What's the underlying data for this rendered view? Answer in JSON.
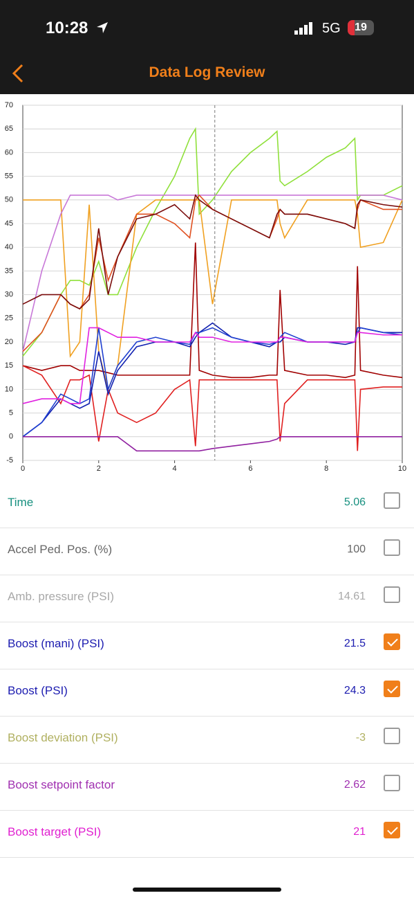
{
  "status_bar": {
    "time": "10:28",
    "network": "5G",
    "battery": "19"
  },
  "header": {
    "title": "Data Log Review"
  },
  "chart_data": {
    "type": "line",
    "x": [
      0,
      0.5,
      1,
      1.25,
      1.5,
      1.75,
      2,
      2.25,
      2.5,
      3,
      3.5,
      4,
      4.4,
      4.55,
      4.65,
      5,
      5.5,
      6,
      6.5,
      6.7,
      6.78,
      6.9,
      7.5,
      8,
      8.5,
      8.75,
      8.82,
      8.9,
      9.5,
      10
    ],
    "xlim": [
      0,
      10
    ],
    "xticks": [
      0,
      2,
      4,
      6,
      8,
      10
    ],
    "ylim": [
      -5,
      70
    ],
    "yticks": [
      -5,
      0,
      5,
      10,
      15,
      20,
      25,
      30,
      35,
      40,
      45,
      50,
      55,
      60,
      65,
      70
    ],
    "grid": true,
    "series": [
      {
        "color": "#8fe03a",
        "values": [
          17,
          22,
          30,
          33,
          33,
          32,
          37,
          30,
          30,
          40,
          48,
          55,
          63,
          65,
          47,
          50,
          56,
          60,
          63,
          64.5,
          54,
          53,
          56,
          59,
          61,
          63,
          50,
          51,
          51,
          53
        ]
      },
      {
        "color": "#f0a020",
        "values": [
          50,
          50,
          50,
          17,
          20,
          49,
          18,
          10,
          15,
          47,
          50,
          50,
          50,
          50,
          50,
          28,
          50,
          50,
          50,
          50,
          45,
          42,
          50,
          50,
          50,
          50,
          47,
          40,
          41,
          50
        ]
      },
      {
        "color": "#c878d8",
        "values": [
          18,
          35,
          47,
          51,
          51,
          51,
          51,
          51,
          50,
          51,
          51,
          51,
          51,
          51,
          51,
          51,
          51,
          51,
          51,
          51,
          51,
          51,
          51,
          51,
          51,
          51,
          51,
          51,
          51,
          50
        ]
      },
      {
        "color": "#e05020",
        "values": [
          18,
          22,
          30,
          28,
          27,
          30,
          42,
          33,
          38,
          47,
          47,
          45,
          42,
          50,
          51,
          48,
          46,
          44,
          42,
          46,
          48,
          47,
          47,
          46,
          45,
          44,
          48,
          50,
          48,
          48
        ]
      },
      {
        "color": "#7a0c0c",
        "values": [
          28,
          30,
          30,
          28,
          27,
          29,
          44,
          30,
          38,
          46,
          47,
          49,
          46,
          51,
          50,
          48,
          46,
          44,
          42,
          47,
          48,
          47,
          47,
          46,
          45,
          44,
          49,
          50,
          49,
          48.5
        ]
      },
      {
        "color": "#a00000",
        "values": [
          15,
          14,
          15,
          15,
          14,
          14,
          14,
          13.5,
          13,
          13,
          13,
          13,
          13,
          41,
          14,
          13,
          12.5,
          12.5,
          13,
          13,
          31,
          14,
          13,
          13,
          12.5,
          13,
          36,
          14,
          13,
          12.5
        ]
      },
      {
        "color": "#e02020",
        "values": [
          15,
          13,
          7,
          12,
          12,
          13,
          -1,
          10,
          5,
          3,
          5,
          10,
          12,
          -2,
          12,
          12,
          12,
          12,
          12,
          12,
          -1,
          7,
          12,
          12,
          12,
          12,
          -3,
          10,
          10.5,
          10.5
        ]
      },
      {
        "color": "#1020b0",
        "values": [
          0,
          3,
          8,
          7,
          6,
          7,
          18,
          9,
          14,
          19,
          20,
          20,
          19,
          21,
          22,
          24,
          21,
          20,
          19,
          20,
          20,
          21,
          20,
          20,
          19.5,
          20,
          23,
          23,
          22,
          22
        ]
      },
      {
        "color": "#2040d0",
        "values": [
          0,
          3,
          9,
          8,
          7,
          8,
          23,
          10,
          15,
          20,
          21,
          20,
          19.5,
          22,
          22,
          23,
          21,
          20,
          19.5,
          20,
          21,
          22,
          20,
          20,
          20,
          20,
          22,
          23,
          22,
          21.5
        ]
      },
      {
        "color": "#e020e0",
        "values": [
          7,
          8,
          8,
          7,
          7,
          23,
          23,
          22,
          21,
          21,
          20,
          20,
          20,
          22,
          21,
          21,
          20,
          20,
          20,
          20,
          21,
          21,
          20,
          20,
          20,
          20,
          22,
          22,
          21.5,
          21.5
        ]
      },
      {
        "color": "#9020a0",
        "values": [
          0,
          0,
          0,
          0,
          0,
          0,
          0,
          0,
          0,
          -3,
          -3,
          -3,
          -3,
          -3,
          -3,
          -2.5,
          -2,
          -1.5,
          -1,
          -0.5,
          0,
          0,
          0,
          0,
          0,
          0,
          0,
          0,
          0,
          0
        ]
      }
    ]
  },
  "list": [
    {
      "label": "Time",
      "value": 5.06,
      "checked": false,
      "color": "#17907f"
    },
    {
      "label": "Accel Ped. Pos. (%)",
      "value": 100,
      "checked": false,
      "color": "#666666"
    },
    {
      "label": "Amb. pressure (PSI)",
      "value": 14.61,
      "checked": false,
      "color": "#a8a8a8"
    },
    {
      "label": "Boost (mani) (PSI)",
      "value": 21.5,
      "checked": true,
      "color": "#1c1cb0"
    },
    {
      "label": "Boost (PSI)",
      "value": 24.3,
      "checked": true,
      "color": "#1c1cb0"
    },
    {
      "label": "Boost deviation (PSI)",
      "value": -3,
      "checked": false,
      "color": "#b0b060"
    },
    {
      "label": "Boost setpoint factor",
      "value": 2.62,
      "checked": false,
      "color": "#a030b0"
    },
    {
      "label": "Boost target (PSI)",
      "value": 21,
      "checked": true,
      "color": "#e020d0"
    }
  ]
}
